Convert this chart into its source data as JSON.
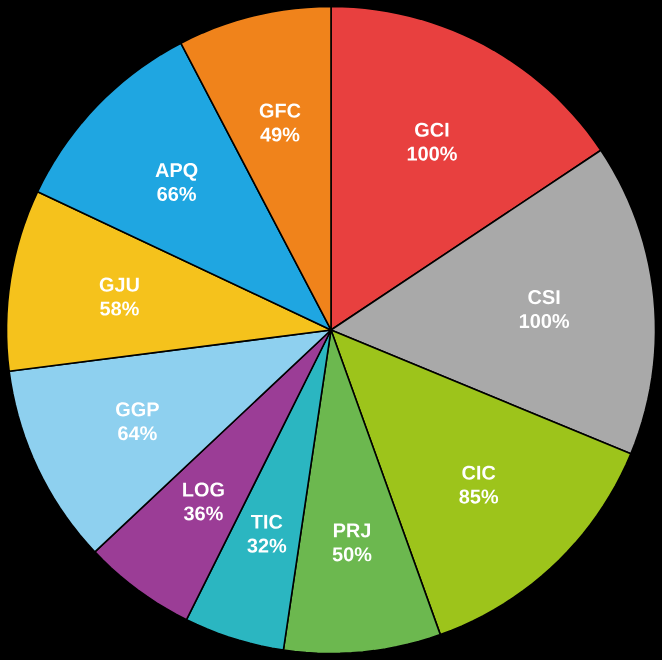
{
  "chart_data": {
    "type": "pie",
    "categories": [
      "GCI",
      "CSI",
      "CIC",
      "PRJ",
      "TIC",
      "LOG",
      "GGP",
      "GJU",
      "APQ",
      "GFC"
    ],
    "values": [
      100,
      100,
      85,
      50,
      32,
      36,
      64,
      58,
      66,
      49
    ],
    "value_labels": [
      "100%",
      "100%",
      "85%",
      "50%",
      "32%",
      "36%",
      "64%",
      "58%",
      "66%",
      "49%"
    ],
    "colors": [
      "#e8403f",
      "#a9a9a9",
      "#9dc41b",
      "#6cb84f",
      "#2bb6c1",
      "#9b3d96",
      "#8ed0ef",
      "#f5c21c",
      "#1fa6e1",
      "#f0831b"
    ]
  }
}
